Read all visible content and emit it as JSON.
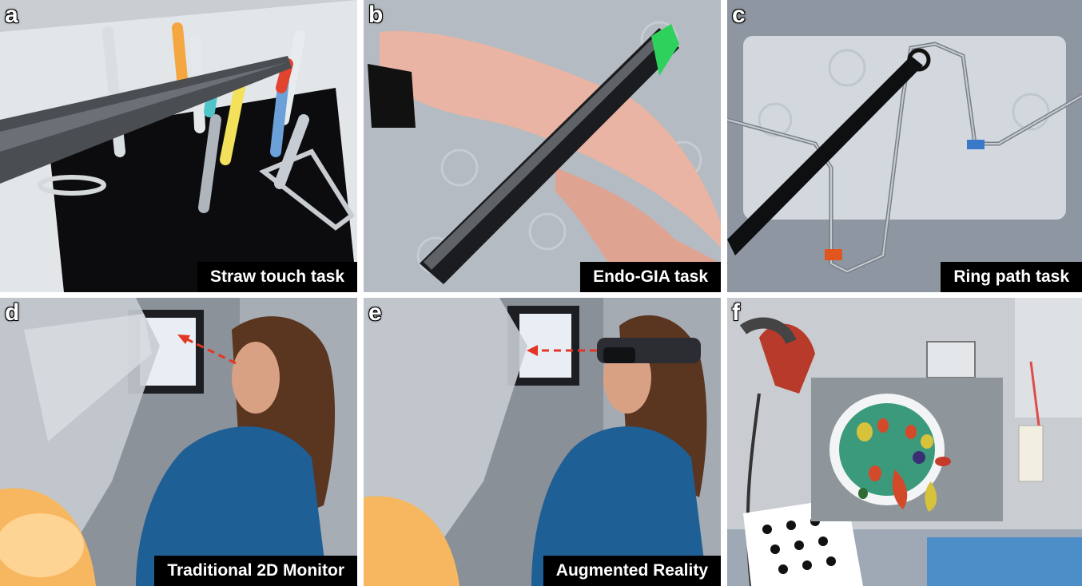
{
  "panels": [
    {
      "letter": "a",
      "caption": "Straw touch task"
    },
    {
      "letter": "b",
      "caption": "Endo-GIA task"
    },
    {
      "letter": "c",
      "caption": "Ring path task"
    },
    {
      "letter": "d",
      "caption": "Traditional 2D Monitor"
    },
    {
      "letter": "e",
      "caption": "Augmented Reality"
    },
    {
      "letter": "f",
      "caption": ""
    }
  ],
  "colors": {
    "caption_bg": "#000000",
    "arrow": "#e53524",
    "tray": "#dfe3e6"
  }
}
